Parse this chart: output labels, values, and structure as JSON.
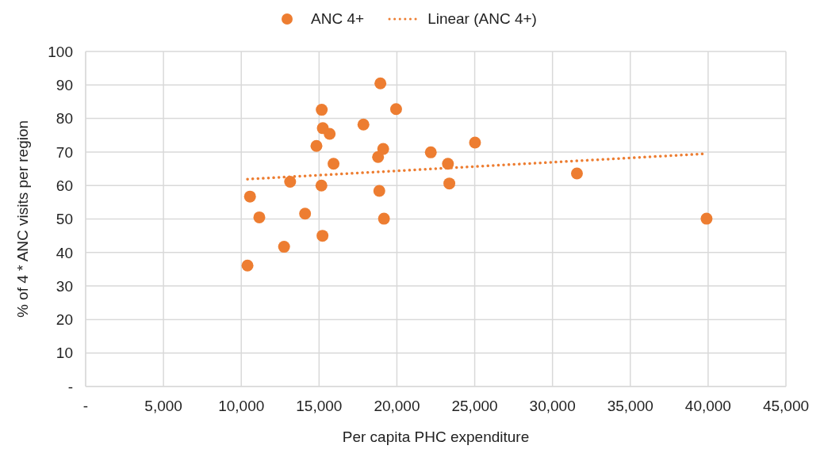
{
  "chart_data": {
    "type": "scatter",
    "xlabel": "Per capita PHC expenditure",
    "ylabel": "% of 4 * ANC visits per region",
    "xlim": [
      0,
      45000
    ],
    "xticks": [
      {
        "value": 0,
        "label": "-"
      },
      {
        "value": 5000,
        "label": "5,000"
      },
      {
        "value": 10000,
        "label": "10,000"
      },
      {
        "value": 15000,
        "label": "15,000"
      },
      {
        "value": 20000,
        "label": "20,000"
      },
      {
        "value": 25000,
        "label": "25,000"
      },
      {
        "value": 30000,
        "label": "30,000"
      },
      {
        "value": 35000,
        "label": "35,000"
      },
      {
        "value": 40000,
        "label": "40,000"
      },
      {
        "value": 45000,
        "label": "45,000"
      }
    ],
    "ylim": [
      0,
      100
    ],
    "yticks": [
      {
        "value": 0,
        "label": "-"
      },
      10,
      20,
      30,
      40,
      50,
      60,
      70,
      80,
      90,
      100
    ],
    "grid": true,
    "legend": "top",
    "series": [
      {
        "name": "ANC 4+",
        "marker": "circle",
        "color": "#ed7d31",
        "x": [
          10400,
          10560,
          11160,
          12750,
          13140,
          14100,
          14830,
          15170,
          15240,
          15680,
          15150,
          15220,
          15930,
          17850,
          18940,
          18790,
          19120,
          18870,
          19170,
          19950,
          22180,
          23280,
          23370,
          25020,
          31570,
          39900
        ],
        "values": [
          36.1,
          56.7,
          50.5,
          41.7,
          61.1,
          51.6,
          71.8,
          82.6,
          77.1,
          75.4,
          60.0,
          45.0,
          66.5,
          78.2,
          90.5,
          68.5,
          70.9,
          58.4,
          50.1,
          82.8,
          69.9,
          66.5,
          60.6,
          72.8,
          63.6,
          50.1
        ]
      },
      {
        "name": "Linear (ANC 4+)",
        "type": "line",
        "marker": "none",
        "line_style": "dotted",
        "color": "#ed7d31",
        "x": [
          10400,
          39900
        ],
        "values": [
          61.9,
          69.5
        ]
      }
    ]
  }
}
